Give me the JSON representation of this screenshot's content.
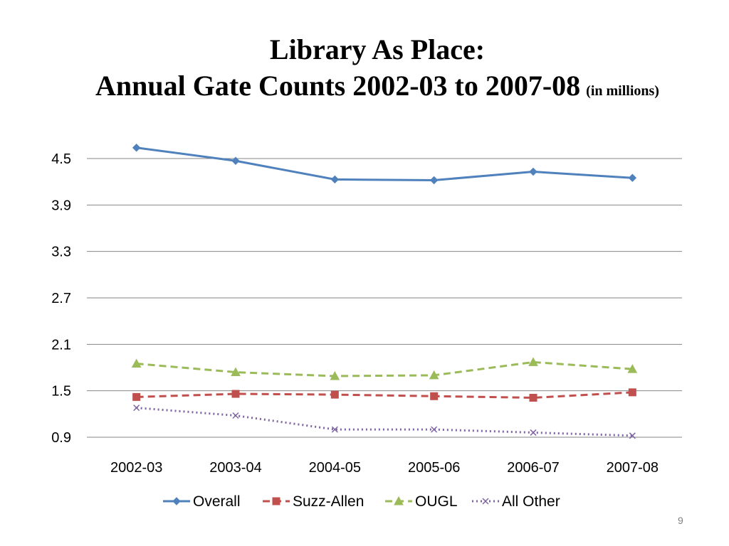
{
  "slide": {
    "title_line1": "Library As Place:",
    "title_line2": "Annual Gate Counts 2002-03 to 2007-08",
    "title_unit": "(in millions)",
    "page_number": "9"
  },
  "chart_data": {
    "type": "line",
    "title": "Library As Place: Annual Gate Counts 2002-03 to 2007-08",
    "subtitle": "(in millions)",
    "xlabel": "",
    "ylabel": "",
    "categories": [
      "2002-03",
      "2003-04",
      "2004-05",
      "2005-06",
      "2006-07",
      "2007-08"
    ],
    "ylim": [
      0.9,
      4.5
    ],
    "yticks": [
      0.9,
      1.5,
      2.1,
      2.7,
      3.3,
      3.9,
      4.5
    ],
    "ytick_labels": [
      "0.9",
      "1.5",
      "2.1",
      "2.7",
      "3.3",
      "3.9",
      "4.5"
    ],
    "grid": "horizontal",
    "legend_position": "bottom",
    "series": [
      {
        "name": "Overall",
        "values": [
          4.64,
          4.47,
          4.23,
          4.22,
          4.33,
          4.25
        ],
        "color": "#4F81BD",
        "marker": "diamond",
        "dash": "solid"
      },
      {
        "name": "Suzz-Allen",
        "values": [
          1.42,
          1.46,
          1.45,
          1.43,
          1.41,
          1.48
        ],
        "color": "#C0504D",
        "marker": "square",
        "dash": "dashed"
      },
      {
        "name": "OUGL",
        "values": [
          1.85,
          1.74,
          1.69,
          1.7,
          1.87,
          1.78
        ],
        "color": "#9BBB59",
        "marker": "triangle",
        "dash": "dashed"
      },
      {
        "name": "All Other",
        "values": [
          1.28,
          1.18,
          1.0,
          1.0,
          0.96,
          0.92
        ],
        "color": "#8064A2",
        "marker": "x",
        "dash": "dotted"
      }
    ]
  }
}
